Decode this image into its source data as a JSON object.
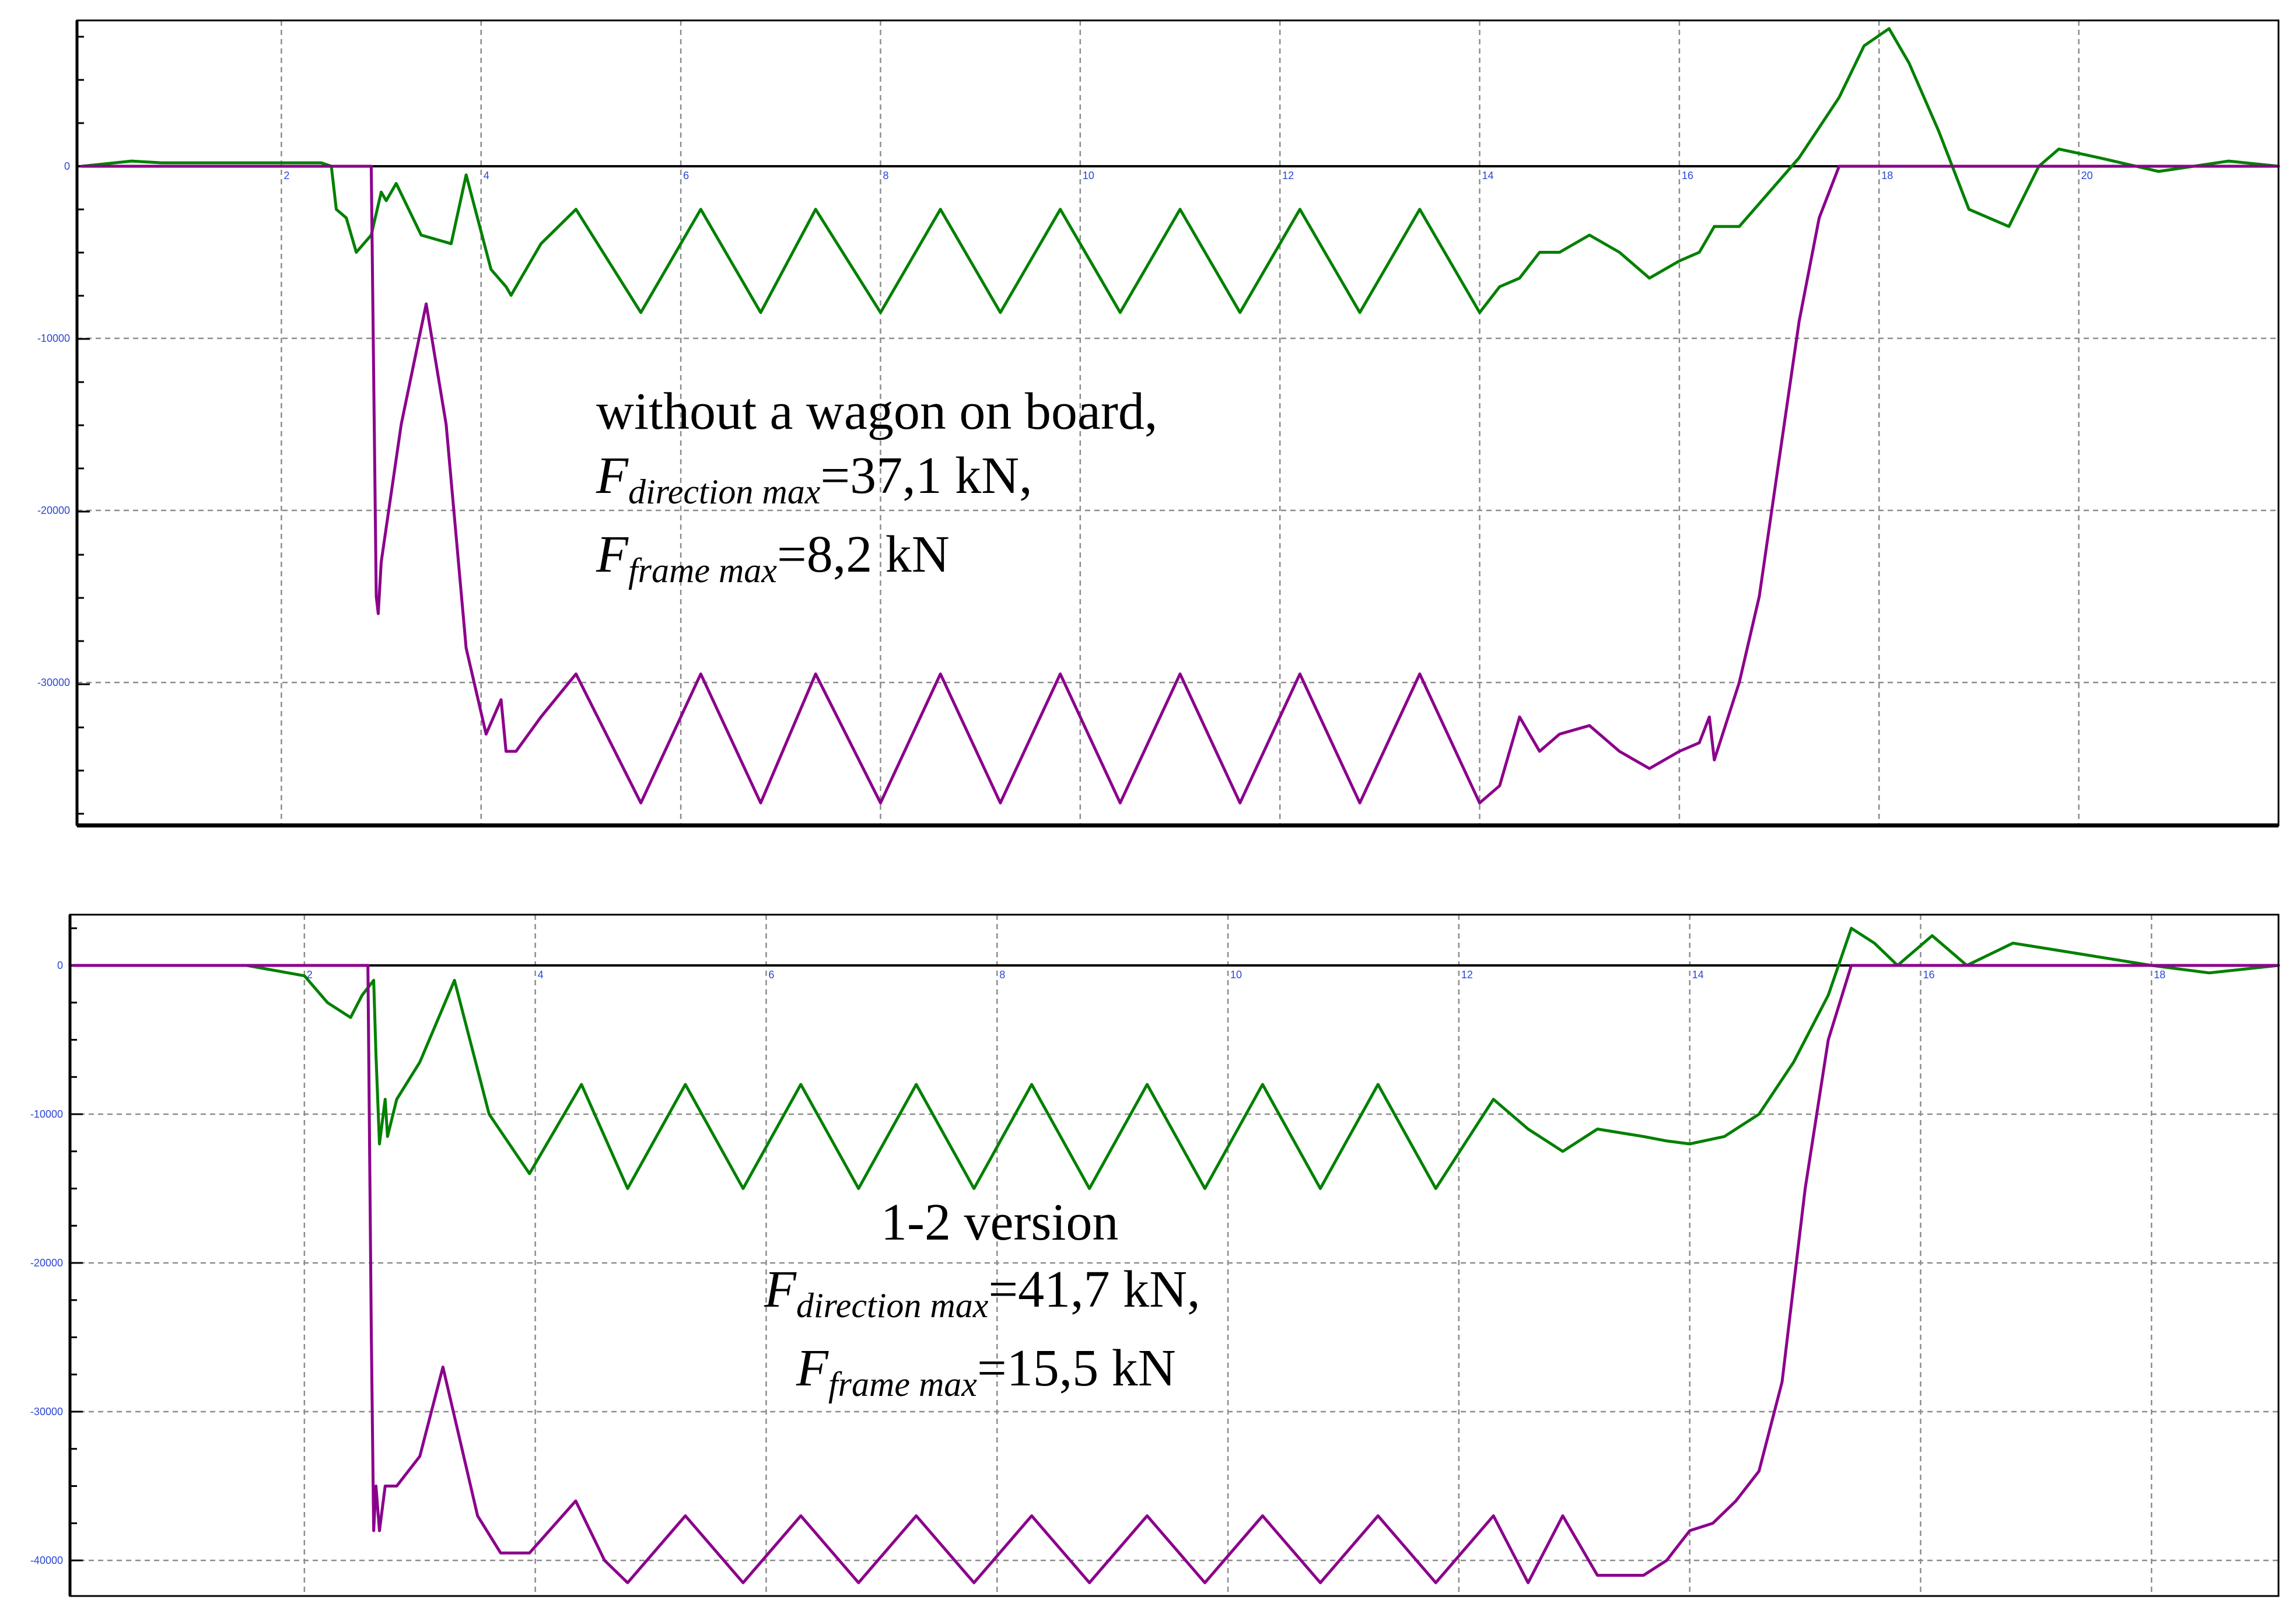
{
  "colors": {
    "frame_force": "#008000",
    "direction_force": "#8b008b",
    "tick_label": "#2b46d6",
    "grid": "#8c8c8c"
  },
  "chart_data": [
    {
      "type": "line",
      "title": "",
      "xlabel": "",
      "ylabel": "",
      "xlim": [
        0,
        22
      ],
      "ylim": [
        -38000,
        9000
      ],
      "x_ticks": [
        2,
        4,
        6,
        8,
        10,
        12,
        14,
        16,
        18,
        20
      ],
      "x_tick_labels": [
        "2",
        "4",
        "6",
        "8",
        "10",
        "12",
        "14",
        "16",
        "18",
        "20"
      ],
      "y_ticks": [
        0,
        -10000,
        -20000,
        -30000
      ],
      "y_tick_labels": [
        "0",
        "-10000",
        "-20000",
        "-30000"
      ],
      "grid": true,
      "annotation": {
        "line1": "without a wagon on board,",
        "line2_main": "F",
        "line2_sub": "direction max",
        "line2_value": "=37,1 kN,",
        "line3_main": "F",
        "line3_sub": "frame max",
        "line3_value": "=8,2 kN"
      },
      "series": [
        {
          "color": "#008000",
          "x": [
            0,
            0.5,
            0.8,
            1.2,
            1.8,
            2.4,
            2.5,
            2.55,
            2.65,
            2.75,
            2.9,
            3.0,
            3.05,
            3.15,
            3.4,
            3.7,
            3.85,
            4.1,
            4.25,
            4.3,
            4.35,
            4.6,
            4.95,
            5.6,
            6.2,
            6.8,
            7.35,
            8.0,
            8.6,
            9.2,
            9.8,
            10.4,
            11.0,
            11.6,
            12.2,
            12.8,
            13.4,
            14.0,
            14.2,
            14.4,
            14.6,
            14.8,
            15.1,
            15.4,
            15.7,
            16.0,
            16.2,
            16.3,
            16.35,
            16.6,
            16.9,
            17.2,
            17.6,
            17.85,
            18.1,
            18.3,
            18.6,
            18.9,
            19.3,
            19.6,
            19.8,
            20.2,
            20.8,
            21.5,
            22.0
          ],
          "y": [
            0,
            300,
            200,
            200,
            200,
            200,
            0,
            -2500,
            -3000,
            -5000,
            -4000,
            -1500,
            -2000,
            -1000,
            -4000,
            -4500,
            -500,
            -6000,
            -7000,
            -7500,
            -7000,
            -4500,
            -2500,
            -8500,
            -2500,
            -8500,
            -2500,
            -8500,
            -2500,
            -8500,
            -2500,
            -8500,
            -2500,
            -8500,
            -2500,
            -8500,
            -2500,
            -8500,
            -7000,
            -6500,
            -5000,
            -5000,
            -4000,
            -5000,
            -6500,
            -5500,
            -5000,
            -4000,
            -3500,
            -3500,
            -1500,
            500,
            4000,
            7000,
            8000,
            6000,
            2000,
            -2500,
            -3500,
            0,
            1000,
            500,
            -300,
            300,
            0
          ]
        },
        {
          "color": "#8b008b",
          "x": [
            0,
            1.5,
            2.9,
            2.95,
            2.97,
            3.0,
            3.2,
            3.45,
            3.65,
            3.85,
            4.05,
            4.2,
            4.25,
            4.35,
            4.6,
            4.95,
            5.6,
            6.2,
            6.8,
            7.35,
            8.0,
            8.6,
            9.2,
            9.8,
            10.4,
            11.0,
            11.6,
            12.2,
            12.8,
            13.4,
            14.0,
            14.2,
            14.4,
            14.6,
            14.8,
            15.1,
            15.4,
            15.7,
            16.0,
            16.2,
            16.3,
            16.35,
            16.6,
            16.8,
            17.0,
            17.2,
            17.4,
            17.6,
            17.8,
            18.0,
            20.0,
            22.0
          ],
          "y": [
            0,
            0,
            0,
            -25000,
            -26000,
            -23000,
            -15000,
            -8000,
            -15000,
            -28000,
            -33000,
            -31000,
            -34000,
            -34000,
            -32000,
            -29500,
            -37000,
            -29500,
            -37000,
            -29500,
            -37000,
            -29500,
            -37000,
            -29500,
            -37000,
            -29500,
            -37000,
            -29500,
            -37000,
            -29500,
            -37000,
            -36000,
            -32000,
            -34000,
            -33000,
            -32500,
            -34000,
            -35000,
            -34000,
            -33500,
            -32000,
            -34500,
            -30000,
            -25000,
            -17000,
            -9000,
            -3000,
            0,
            0,
            0,
            0,
            0
          ]
        }
      ]
    },
    {
      "type": "line",
      "title": "",
      "xlabel": "",
      "ylabel": "",
      "xlim": [
        0,
        19.1
      ],
      "ylim": [
        -42500,
        3500
      ],
      "x_ticks": [
        2,
        4,
        6,
        8,
        10,
        12,
        14,
        16,
        18
      ],
      "x_tick_labels": [
        "2",
        "4",
        "6",
        "8",
        "10",
        "12",
        "14",
        "16",
        "18"
      ],
      "y_ticks": [
        0,
        -10000,
        -20000,
        -30000,
        -40000
      ],
      "y_tick_labels": [
        "0",
        "-10000",
        "-20000",
        "-30000",
        "-40000"
      ],
      "grid": true,
      "annotation": {
        "line1": "1-2 version",
        "line2_main": "F",
        "line2_sub": "direction max",
        "line2_value": "=41,7 kN,",
        "line3_main": "F",
        "line3_sub": "frame max",
        "line3_value": "=15,5 kN"
      },
      "series": [
        {
          "color": "#008000",
          "x": [
            0,
            0.5,
            1.5,
            2.0,
            2.2,
            2.4,
            2.5,
            2.6,
            2.62,
            2.65,
            2.7,
            2.72,
            2.8,
            3.0,
            3.3,
            3.6,
            3.95,
            4.4,
            4.8,
            5.3,
            5.8,
            6.3,
            6.8,
            7.3,
            7.8,
            8.3,
            8.8,
            9.3,
            9.8,
            10.3,
            10.8,
            11.3,
            11.8,
            12.3,
            12.6,
            12.9,
            13.2,
            13.6,
            13.8,
            14.0,
            14.3,
            14.6,
            14.9,
            15.2,
            15.4,
            15.6,
            15.8,
            16.1,
            16.4,
            16.8,
            17.2,
            17.6,
            18.0,
            18.5,
            19.1
          ],
          "y": [
            0,
            0,
            0,
            -700,
            -2500,
            -3500,
            -2000,
            -1000,
            -6000,
            -12000,
            -9000,
            -11500,
            -9000,
            -6500,
            -1000,
            -10000,
            -14000,
            -8000,
            -15000,
            -8000,
            -15000,
            -8000,
            -15000,
            -8000,
            -15000,
            -8000,
            -15000,
            -8000,
            -15000,
            -8000,
            -15000,
            -8000,
            -15000,
            -9000,
            -11000,
            -12500,
            -11000,
            -11500,
            -11800,
            -12000,
            -11500,
            -10000,
            -6500,
            -2000,
            2500,
            1500,
            0,
            2000,
            0,
            1500,
            1000,
            500,
            0,
            -500,
            0
          ]
        },
        {
          "color": "#8b008b",
          "x": [
            0,
            1.5,
            2.55,
            2.58,
            2.6,
            2.62,
            2.65,
            2.7,
            2.8,
            3.0,
            3.2,
            3.5,
            3.7,
            3.95,
            4.35,
            4.6,
            4.8,
            5.3,
            5.8,
            6.3,
            6.8,
            7.3,
            7.8,
            8.3,
            8.8,
            9.3,
            9.8,
            10.3,
            10.8,
            11.3,
            11.8,
            12.3,
            12.6,
            12.9,
            13.2,
            13.6,
            13.8,
            14.0,
            14.2,
            14.4,
            14.6,
            14.8,
            15.0,
            15.2,
            15.4,
            15.5,
            15.6,
            16.0,
            19.1
          ],
          "y": [
            0,
            0,
            0,
            -25000,
            -38000,
            -35000,
            -38000,
            -35000,
            -35000,
            -33000,
            -27000,
            -37000,
            -39500,
            -39500,
            -36000,
            -40000,
            -41500,
            -37000,
            -41500,
            -37000,
            -41500,
            -37000,
            -41500,
            -37000,
            -41500,
            -37000,
            -41500,
            -37000,
            -41500,
            -37000,
            -41500,
            -37000,
            -41500,
            -37000,
            -41000,
            -41000,
            -40000,
            -38000,
            -37500,
            -36000,
            -34000,
            -28000,
            -15000,
            -5000,
            0,
            0,
            0,
            0,
            0
          ]
        }
      ]
    }
  ]
}
